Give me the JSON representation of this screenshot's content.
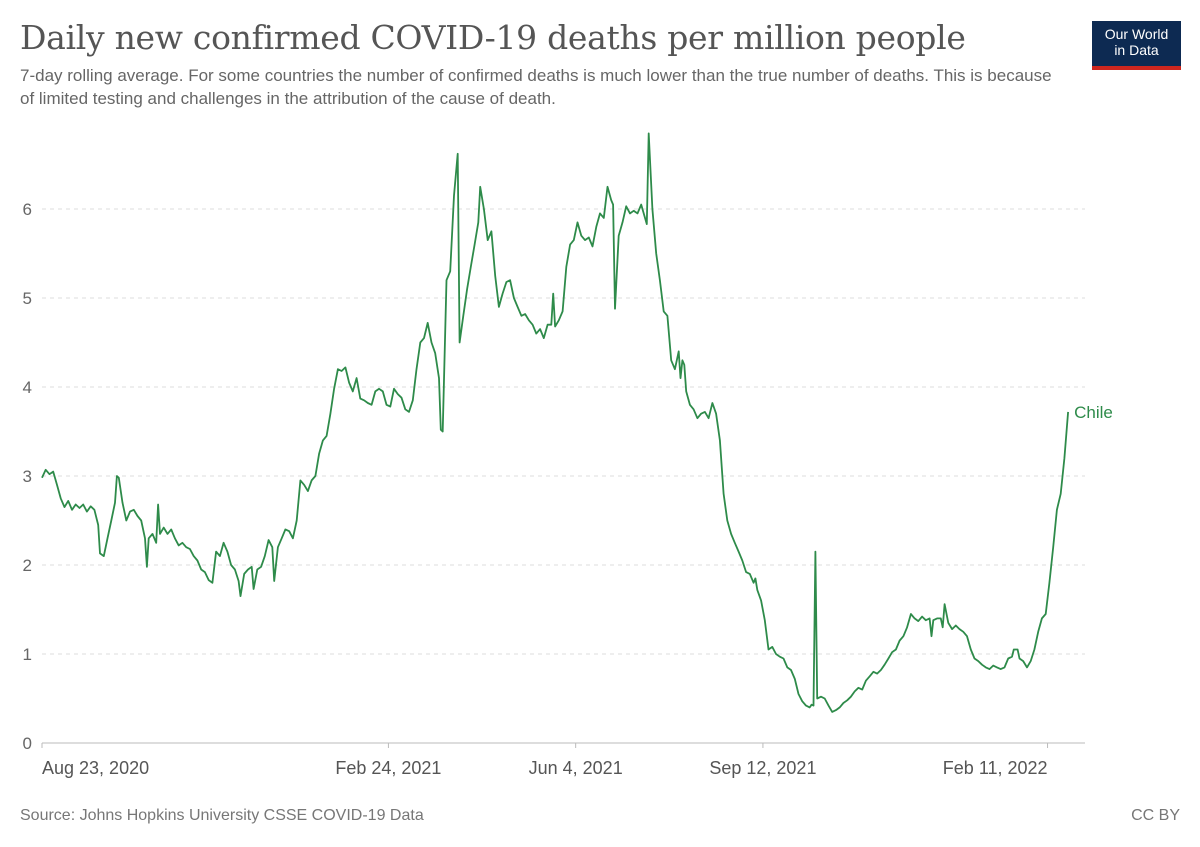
{
  "header": {
    "title": "Daily new confirmed COVID-19 deaths per million people",
    "subtitle": "7-day rolling average. For some countries the number of confirmed deaths is much lower than the true number of deaths. This is because of limited testing and challenges in the attribution of the cause of death.",
    "logo_line1": "Our World",
    "logo_line2": "in Data"
  },
  "footer": {
    "source": "Source: Johns Hopkins University CSSE COVID-19 Data",
    "license": "CC BY"
  },
  "colors": {
    "series": "#2e8b4a",
    "logo_bg": "#0d2a52",
    "logo_accent": "#ce261e",
    "grid": "#dddddd",
    "axis": "#bbbbbb"
  },
  "chart_data": {
    "type": "line",
    "title": "Daily new confirmed COVID-19 deaths per million people",
    "subtitle": "7-day rolling average",
    "xlabel": "",
    "ylabel": "",
    "x_unit": "days since Aug 23, 2020",
    "xlim": [
      0,
      557
    ],
    "ylim": [
      0,
      6.9
    ],
    "y_ticks": [
      0,
      1,
      2,
      3,
      4,
      5,
      6
    ],
    "x_ticks": [
      {
        "label": "Aug 23, 2020",
        "day": 0
      },
      {
        "label": "Feb 24, 2021",
        "day": 185
      },
      {
        "label": "Jun 4, 2021",
        "day": 285
      },
      {
        "label": "Sep 12, 2021",
        "day": 385
      },
      {
        "label": "Feb 11, 2022",
        "day": 537
      }
    ],
    "grid": "horizontal dashed",
    "legend": "inline label at line end (right)",
    "series": [
      {
        "name": "Chile",
        "points": [
          [
            0,
            2.98
          ],
          [
            2,
            3.07
          ],
          [
            4,
            3.02
          ],
          [
            6,
            3.05
          ],
          [
            8,
            2.9
          ],
          [
            10,
            2.75
          ],
          [
            12,
            2.65
          ],
          [
            14,
            2.72
          ],
          [
            16,
            2.62
          ],
          [
            18,
            2.68
          ],
          [
            20,
            2.64
          ],
          [
            22,
            2.68
          ],
          [
            24,
            2.6
          ],
          [
            26,
            2.66
          ],
          [
            28,
            2.62
          ],
          [
            30,
            2.45
          ],
          [
            31,
            2.13
          ],
          [
            33,
            2.1
          ],
          [
            35,
            2.3
          ],
          [
            37,
            2.5
          ],
          [
            39,
            2.7
          ],
          [
            40,
            3.0
          ],
          [
            41,
            2.98
          ],
          [
            43,
            2.7
          ],
          [
            45,
            2.5
          ],
          [
            47,
            2.6
          ],
          [
            49,
            2.62
          ],
          [
            51,
            2.55
          ],
          [
            53,
            2.5
          ],
          [
            55,
            2.3
          ],
          [
            56,
            1.98
          ],
          [
            57,
            2.3
          ],
          [
            59,
            2.35
          ],
          [
            61,
            2.25
          ],
          [
            62,
            2.68
          ],
          [
            63,
            2.35
          ],
          [
            65,
            2.42
          ],
          [
            67,
            2.35
          ],
          [
            69,
            2.4
          ],
          [
            71,
            2.3
          ],
          [
            73,
            2.22
          ],
          [
            75,
            2.25
          ],
          [
            77,
            2.2
          ],
          [
            79,
            2.18
          ],
          [
            81,
            2.1
          ],
          [
            83,
            2.05
          ],
          [
            85,
            1.95
          ],
          [
            87,
            1.92
          ],
          [
            89,
            1.83
          ],
          [
            91,
            1.8
          ],
          [
            93,
            2.15
          ],
          [
            95,
            2.1
          ],
          [
            97,
            2.25
          ],
          [
            99,
            2.15
          ],
          [
            101,
            2.0
          ],
          [
            103,
            1.95
          ],
          [
            105,
            1.82
          ],
          [
            106,
            1.65
          ],
          [
            108,
            1.9
          ],
          [
            110,
            1.95
          ],
          [
            112,
            1.98
          ],
          [
            113,
            1.73
          ],
          [
            115,
            1.95
          ],
          [
            117,
            1.98
          ],
          [
            119,
            2.1
          ],
          [
            121,
            2.28
          ],
          [
            123,
            2.2
          ],
          [
            124,
            1.82
          ],
          [
            126,
            2.2
          ],
          [
            128,
            2.3
          ],
          [
            130,
            2.4
          ],
          [
            132,
            2.38
          ],
          [
            134,
            2.3
          ],
          [
            136,
            2.5
          ],
          [
            138,
            2.95
          ],
          [
            140,
            2.9
          ],
          [
            142,
            2.83
          ],
          [
            144,
            2.95
          ],
          [
            146,
            3.0
          ],
          [
            148,
            3.25
          ],
          [
            150,
            3.4
          ],
          [
            152,
            3.45
          ],
          [
            154,
            3.7
          ],
          [
            156,
            3.98
          ],
          [
            158,
            4.2
          ],
          [
            160,
            4.18
          ],
          [
            162,
            4.22
          ],
          [
            164,
            4.05
          ],
          [
            166,
            3.95
          ],
          [
            168,
            4.1
          ],
          [
            170,
            3.87
          ],
          [
            172,
            3.85
          ],
          [
            174,
            3.82
          ],
          [
            176,
            3.8
          ],
          [
            178,
            3.95
          ],
          [
            180,
            3.98
          ],
          [
            182,
            3.95
          ],
          [
            184,
            3.8
          ],
          [
            186,
            3.78
          ],
          [
            188,
            3.98
          ],
          [
            190,
            3.92
          ],
          [
            192,
            3.88
          ],
          [
            194,
            3.75
          ],
          [
            196,
            3.72
          ],
          [
            198,
            3.85
          ],
          [
            200,
            4.2
          ],
          [
            202,
            4.5
          ],
          [
            204,
            4.55
          ],
          [
            206,
            4.72
          ],
          [
            208,
            4.5
          ],
          [
            210,
            4.38
          ],
          [
            212,
            4.1
          ],
          [
            213,
            3.52
          ],
          [
            214,
            3.5
          ],
          [
            216,
            5.2
          ],
          [
            218,
            5.3
          ],
          [
            220,
            6.15
          ],
          [
            222,
            6.62
          ],
          [
            223,
            4.5
          ],
          [
            225,
            4.8
          ],
          [
            227,
            5.1
          ],
          [
            229,
            5.35
          ],
          [
            231,
            5.6
          ],
          [
            233,
            5.85
          ],
          [
            234,
            6.25
          ],
          [
            236,
            6.0
          ],
          [
            238,
            5.65
          ],
          [
            240,
            5.75
          ],
          [
            242,
            5.25
          ],
          [
            244,
            4.9
          ],
          [
            246,
            5.05
          ],
          [
            248,
            5.18
          ],
          [
            250,
            5.2
          ],
          [
            252,
            5.0
          ],
          [
            254,
            4.9
          ],
          [
            256,
            4.8
          ],
          [
            258,
            4.82
          ],
          [
            260,
            4.75
          ],
          [
            262,
            4.7
          ],
          [
            264,
            4.6
          ],
          [
            266,
            4.65
          ],
          [
            268,
            4.55
          ],
          [
            270,
            4.7
          ],
          [
            272,
            4.7
          ],
          [
            273,
            5.05
          ],
          [
            274,
            4.68
          ],
          [
            276,
            4.75
          ],
          [
            278,
            4.85
          ],
          [
            280,
            5.35
          ],
          [
            282,
            5.6
          ],
          [
            284,
            5.65
          ],
          [
            286,
            5.85
          ],
          [
            288,
            5.7
          ],
          [
            290,
            5.65
          ],
          [
            292,
            5.68
          ],
          [
            294,
            5.58
          ],
          [
            296,
            5.8
          ],
          [
            298,
            5.95
          ],
          [
            300,
            5.9
          ],
          [
            302,
            6.25
          ],
          [
            304,
            6.1
          ],
          [
            305,
            6.05
          ],
          [
            306,
            4.88
          ],
          [
            308,
            5.7
          ],
          [
            310,
            5.85
          ],
          [
            312,
            6.03
          ],
          [
            314,
            5.95
          ],
          [
            316,
            5.98
          ],
          [
            318,
            5.95
          ],
          [
            320,
            6.05
          ],
          [
            322,
            5.9
          ],
          [
            323,
            5.83
          ],
          [
            324,
            6.85
          ],
          [
            326,
            6.0
          ],
          [
            328,
            5.5
          ],
          [
            330,
            5.2
          ],
          [
            332,
            4.85
          ],
          [
            334,
            4.8
          ],
          [
            336,
            4.3
          ],
          [
            338,
            4.2
          ],
          [
            340,
            4.4
          ],
          [
            341,
            4.1
          ],
          [
            342,
            4.3
          ],
          [
            343,
            4.25
          ],
          [
            344,
            3.95
          ],
          [
            346,
            3.8
          ],
          [
            348,
            3.75
          ],
          [
            350,
            3.65
          ],
          [
            352,
            3.7
          ],
          [
            354,
            3.72
          ],
          [
            356,
            3.65
          ],
          [
            358,
            3.82
          ],
          [
            360,
            3.7
          ],
          [
            362,
            3.4
          ],
          [
            364,
            2.8
          ],
          [
            366,
            2.5
          ],
          [
            368,
            2.35
          ],
          [
            370,
            2.25
          ],
          [
            372,
            2.15
          ],
          [
            374,
            2.05
          ],
          [
            376,
            1.92
          ],
          [
            378,
            1.9
          ],
          [
            380,
            1.8
          ],
          [
            381,
            1.85
          ],
          [
            382,
            1.72
          ],
          [
            384,
            1.6
          ],
          [
            386,
            1.38
          ],
          [
            388,
            1.05
          ],
          [
            390,
            1.08
          ],
          [
            392,
            1.0
          ],
          [
            394,
            0.97
          ],
          [
            396,
            0.95
          ],
          [
            398,
            0.85
          ],
          [
            400,
            0.82
          ],
          [
            402,
            0.72
          ],
          [
            404,
            0.55
          ],
          [
            406,
            0.47
          ],
          [
            408,
            0.42
          ],
          [
            410,
            0.4
          ],
          [
            411,
            0.43
          ],
          [
            412,
            0.42
          ],
          [
            413,
            2.15
          ],
          [
            414,
            0.5
          ],
          [
            416,
            0.52
          ],
          [
            418,
            0.5
          ],
          [
            420,
            0.42
          ],
          [
            422,
            0.35
          ],
          [
            424,
            0.37
          ],
          [
            426,
            0.4
          ],
          [
            428,
            0.45
          ],
          [
            430,
            0.48
          ],
          [
            432,
            0.52
          ],
          [
            434,
            0.58
          ],
          [
            436,
            0.62
          ],
          [
            438,
            0.6
          ],
          [
            440,
            0.7
          ],
          [
            442,
            0.75
          ],
          [
            444,
            0.8
          ],
          [
            446,
            0.78
          ],
          [
            448,
            0.82
          ],
          [
            450,
            0.88
          ],
          [
            452,
            0.95
          ],
          [
            454,
            1.02
          ],
          [
            456,
            1.05
          ],
          [
            458,
            1.15
          ],
          [
            460,
            1.2
          ],
          [
            462,
            1.3
          ],
          [
            464,
            1.45
          ],
          [
            466,
            1.4
          ],
          [
            468,
            1.37
          ],
          [
            470,
            1.42
          ],
          [
            472,
            1.38
          ],
          [
            474,
            1.4
          ],
          [
            475,
            1.2
          ],
          [
            476,
            1.38
          ],
          [
            478,
            1.4
          ],
          [
            480,
            1.4
          ],
          [
            481,
            1.3
          ],
          [
            482,
            1.56
          ],
          [
            484,
            1.35
          ],
          [
            486,
            1.28
          ],
          [
            488,
            1.32
          ],
          [
            490,
            1.28
          ],
          [
            492,
            1.25
          ],
          [
            494,
            1.2
          ],
          [
            496,
            1.05
          ],
          [
            498,
            0.95
          ],
          [
            500,
            0.92
          ],
          [
            502,
            0.88
          ],
          [
            504,
            0.85
          ],
          [
            506,
            0.83
          ],
          [
            508,
            0.87
          ],
          [
            510,
            0.85
          ],
          [
            512,
            0.83
          ],
          [
            514,
            0.85
          ],
          [
            516,
            0.95
          ],
          [
            518,
            0.97
          ],
          [
            519,
            1.05
          ],
          [
            521,
            1.05
          ],
          [
            522,
            0.95
          ],
          [
            524,
            0.92
          ],
          [
            526,
            0.85
          ],
          [
            528,
            0.92
          ],
          [
            530,
            1.05
          ],
          [
            532,
            1.25
          ],
          [
            534,
            1.4
          ],
          [
            536,
            1.45
          ],
          [
            538,
            1.8
          ],
          [
            540,
            2.2
          ],
          [
            542,
            2.62
          ],
          [
            544,
            2.8
          ],
          [
            546,
            3.2
          ],
          [
            548,
            3.72
          ]
        ]
      }
    ]
  }
}
